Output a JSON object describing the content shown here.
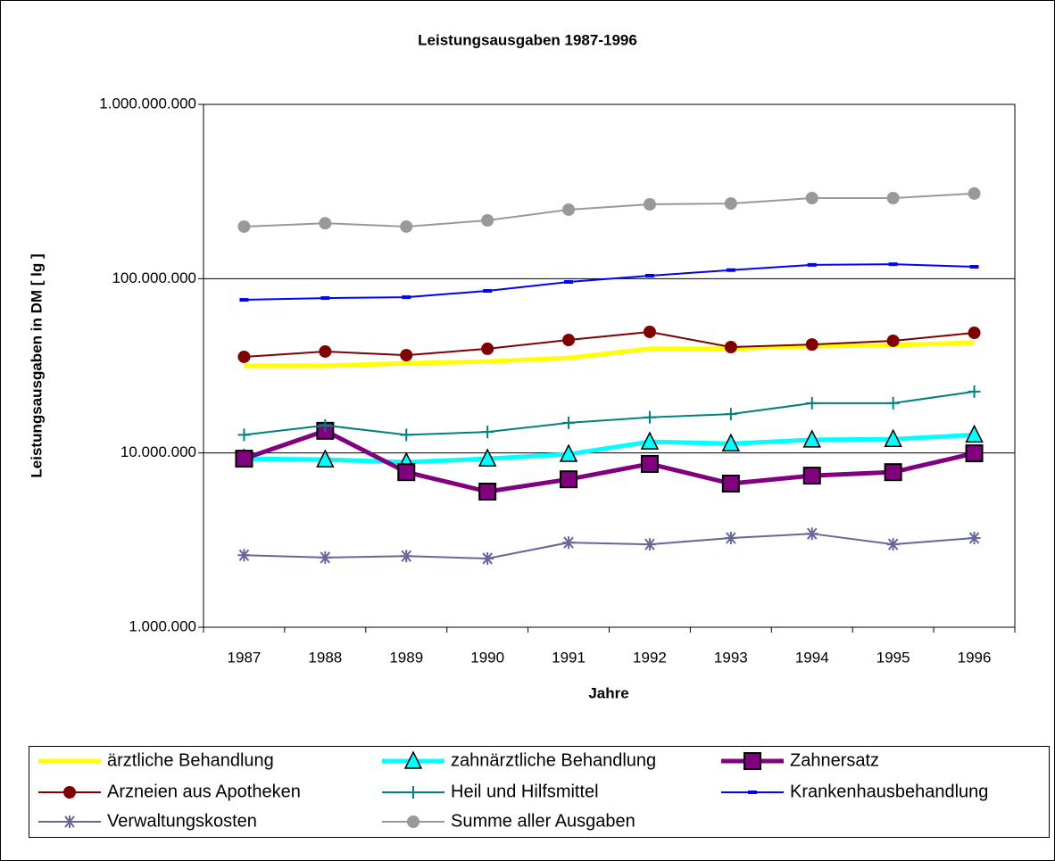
{
  "chart_data": {
    "type": "line",
    "title": "Leistungsausgaben 1987-1996",
    "x_label": "Jahre",
    "y_label": "Leistungsausgaben in DM  [ lg ]",
    "categories": [
      "1987",
      "1988",
      "1989",
      "1990",
      "1991",
      "1992",
      "1993",
      "1994",
      "1995",
      "1996"
    ],
    "log_scale": true,
    "ylim": [
      1000000,
      1000000000
    ],
    "yticks": [
      {
        "value": 1000000,
        "label": "1.000.000"
      },
      {
        "value": 10000000,
        "label": "10.000.000"
      },
      {
        "value": 100000000,
        "label": "100.000.000"
      },
      {
        "value": 1000000000,
        "label": "1.000.000.000"
      }
    ],
    "grid": true,
    "legend": "bottom",
    "series": [
      {
        "name": "ärztliche Behandlung",
        "color": "#ffff00",
        "marker": "none",
        "linewidth": 5,
        "values": [
          31600000,
          31600000,
          32700000,
          33500000,
          35100000,
          39600000,
          39600000,
          41000000,
          41500000,
          43000000
        ]
      },
      {
        "name": "zahnärztliche Behandlung",
        "color": "#00ffff",
        "marker": "triangle",
        "linewidth": 5,
        "values": [
          9270000,
          9160000,
          8850000,
          9270000,
          9840000,
          11600000,
          11300000,
          11900000,
          12000000,
          12700000
        ]
      },
      {
        "name": "Zahnersatz",
        "color": "#800080",
        "marker": "square",
        "linewidth": 5,
        "values": [
          9270000,
          13400000,
          7760000,
          6000000,
          7060000,
          8650000,
          6670000,
          7410000,
          7760000,
          9950000
        ]
      },
      {
        "name": "Arzneien aus Apotheken",
        "color": "#800000",
        "marker": "circle",
        "linewidth": 2,
        "values": [
          35600000,
          38200000,
          36400000,
          39600000,
          44500000,
          49500000,
          40500000,
          41900000,
          44000000,
          48900000
        ]
      },
      {
        "name": "Heil und Hilfsmittel",
        "color": "#008080",
        "marker": "plus",
        "linewidth": 2,
        "values": [
          12700000,
          14400000,
          12700000,
          13200000,
          14900000,
          16000000,
          16700000,
          19300000,
          19300000,
          22500000
        ]
      },
      {
        "name": "Krankenhausbehandlung",
        "color": "#0000ff",
        "marker": "dash",
        "linewidth": 2,
        "values": [
          75600000,
          77400000,
          78300000,
          85100000,
          95800000,
          104000000,
          112000000,
          120000000,
          121000000,
          117000000
        ]
      },
      {
        "name": "Verwaltungskosten",
        "color": "#666699",
        "marker": "star",
        "linewidth": 2,
        "values": [
          2590000,
          2510000,
          2560000,
          2480000,
          3060000,
          2990000,
          3250000,
          3440000,
          2990000,
          3250000
        ]
      },
      {
        "name": "Summe aller Ausgaben",
        "color": "#999999",
        "marker": "circle",
        "linewidth": 2,
        "values": [
          199000000,
          208000000,
          199000000,
          216000000,
          249000000,
          267000000,
          270000000,
          290000000,
          290000000,
          308000000
        ]
      }
    ]
  }
}
